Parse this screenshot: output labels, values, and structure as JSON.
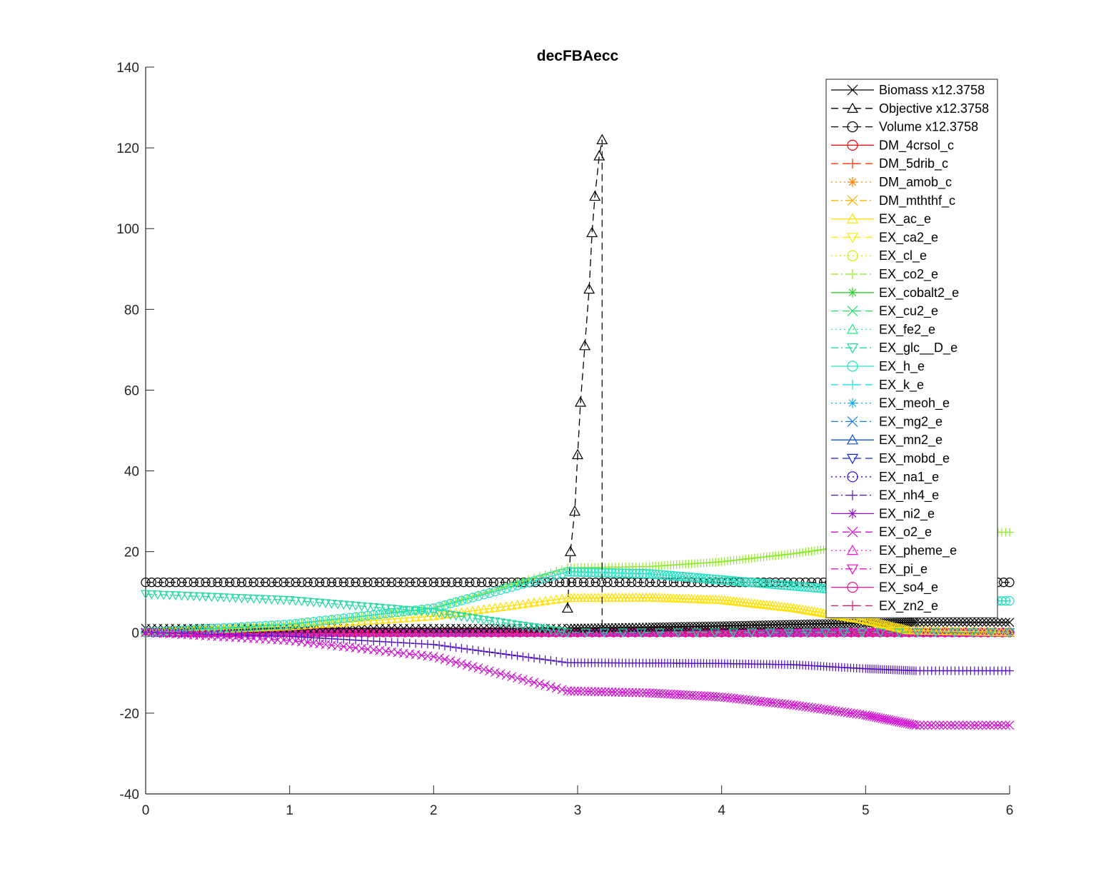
{
  "chart_data": {
    "type": "line",
    "title": "decFBAecc",
    "xlabel": "",
    "ylabel": "",
    "xlim": [
      0,
      6
    ],
    "ylim": [
      -40,
      140
    ],
    "xticks": [
      0,
      1,
      2,
      3,
      4,
      5,
      6
    ],
    "yticks": [
      -40,
      -20,
      0,
      20,
      40,
      60,
      80,
      100,
      120,
      140
    ],
    "grid": false,
    "legend_position": "top-right",
    "series": [
      {
        "name": "Biomass x12.3758",
        "color": "#000000",
        "dash": "solid",
        "marker": "x",
        "x": [
          0,
          1,
          2,
          2.93,
          3.5,
          4,
          4.5,
          5,
          5.35,
          6
        ],
        "y": [
          1,
          1,
          1,
          1,
          1.3,
          1.6,
          2.0,
          2.3,
          2.5,
          2.5
        ]
      },
      {
        "name": "Objective x12.3758",
        "color": "#000000",
        "dash": "dashed",
        "marker": "triangle-up",
        "x": [
          2.93,
          2.95,
          2.98,
          3.0,
          3.02,
          3.05,
          3.08,
          3.1,
          3.12,
          3.15,
          3.17
        ],
        "y": [
          6,
          20,
          30,
          44,
          57,
          71,
          85,
          99,
          108,
          118,
          122
        ]
      },
      {
        "name": "Volume x12.3758",
        "color": "#000000",
        "dash": "dashed",
        "marker": "circle",
        "x": [
          0,
          1,
          2,
          3,
          4,
          5,
          6
        ],
        "y": [
          12.4,
          12.4,
          12.4,
          12.4,
          12.4,
          12.4,
          12.4
        ]
      },
      {
        "name": "DM_4crsol_c",
        "color": "#ff0000",
        "dash": "solid",
        "marker": "circle",
        "x": [
          0,
          6
        ],
        "y": [
          0,
          0
        ]
      },
      {
        "name": "DM_5drib_c",
        "color": "#ff3300",
        "dash": "dashed",
        "marker": "plus",
        "x": [
          0,
          6
        ],
        "y": [
          0,
          0
        ]
      },
      {
        "name": "DM_amob_c",
        "color": "#ff7f00",
        "dash": "dotted",
        "marker": "asterisk",
        "x": [
          0,
          6
        ],
        "y": [
          0,
          0
        ]
      },
      {
        "name": "DM_mththf_c",
        "color": "#ffb000",
        "dash": "dashdot",
        "marker": "x",
        "x": [
          0,
          6
        ],
        "y": [
          0,
          0
        ]
      },
      {
        "name": "EX_ac_e",
        "color": "#ffe000",
        "dash": "solid",
        "marker": "triangle-up",
        "x": [
          0,
          1,
          2,
          2.93,
          3.5,
          4,
          4.5,
          5,
          5.3,
          6
        ],
        "y": [
          0,
          1.5,
          4,
          8.5,
          8.6,
          8,
          6,
          3,
          0.5,
          0
        ]
      },
      {
        "name": "EX_ca2_e",
        "color": "#f0f000",
        "dash": "dashed",
        "marker": "triangle-down",
        "x": [
          0,
          6
        ],
        "y": [
          0,
          0
        ]
      },
      {
        "name": "EX_cl_e",
        "color": "#c8f000",
        "dash": "dotted",
        "marker": "circle",
        "x": [
          0,
          6
        ],
        "y": [
          0,
          0
        ]
      },
      {
        "name": "EX_co2_e",
        "color": "#90e830",
        "dash": "dashdot",
        "marker": "plus",
        "x": [
          0,
          1,
          2,
          2.93,
          3.5,
          4,
          4.5,
          5,
          5.35,
          6
        ],
        "y": [
          0,
          2,
          6,
          16,
          16.3,
          17.5,
          19.5,
          22,
          24.8,
          24.8
        ]
      },
      {
        "name": "EX_cobalt2_e",
        "color": "#30d030",
        "dash": "solid",
        "marker": "asterisk",
        "x": [
          0,
          6
        ],
        "y": [
          0,
          0
        ]
      },
      {
        "name": "EX_cu2_e",
        "color": "#20e060",
        "dash": "dashed",
        "marker": "x",
        "x": [
          0,
          6
        ],
        "y": [
          0,
          0
        ]
      },
      {
        "name": "EX_fe2_e",
        "color": "#20e880",
        "dash": "dotted",
        "marker": "triangle-up",
        "x": [
          0,
          6
        ],
        "y": [
          0,
          0
        ]
      },
      {
        "name": "EX_glc__D_e",
        "color": "#20d8a0",
        "dash": "dashdot",
        "marker": "triangle-down",
        "x": [
          0,
          1,
          2,
          2.93,
          6
        ],
        "y": [
          9.5,
          8,
          5,
          0,
          0
        ]
      },
      {
        "name": "EX_h_e",
        "color": "#20e0c0",
        "dash": "solid",
        "marker": "circle",
        "x": [
          0,
          1,
          2,
          2.93,
          3.5,
          4,
          4.5,
          5,
          5.35,
          6
        ],
        "y": [
          0,
          2,
          6,
          15,
          14.5,
          13,
          11.5,
          10,
          7.8,
          7.8
        ]
      },
      {
        "name": "EX_k_e",
        "color": "#20e0e8",
        "dash": "dashed",
        "marker": "plus",
        "x": [
          0,
          6
        ],
        "y": [
          0,
          0
        ]
      },
      {
        "name": "EX_meoh_e",
        "color": "#10b0f0",
        "dash": "dotted",
        "marker": "asterisk",
        "x": [
          0,
          6
        ],
        "y": [
          0,
          0
        ]
      },
      {
        "name": "EX_mg2_e",
        "color": "#1080f0",
        "dash": "dashdot",
        "marker": "x",
        "x": [
          0,
          6
        ],
        "y": [
          0,
          0
        ]
      },
      {
        "name": "EX_mn2_e",
        "color": "#1050e0",
        "dash": "solid",
        "marker": "triangle-up",
        "x": [
          0,
          6
        ],
        "y": [
          0,
          0
        ]
      },
      {
        "name": "EX_mobd_e",
        "color": "#1020e0",
        "dash": "dashed",
        "marker": "triangle-down",
        "x": [
          0,
          6
        ],
        "y": [
          0,
          0
        ]
      },
      {
        "name": "EX_na1_e",
        "color": "#2010d0",
        "dash": "dotted",
        "marker": "circle",
        "x": [
          0,
          6
        ],
        "y": [
          0,
          0
        ]
      },
      {
        "name": "EX_nh4_e",
        "color": "#5010c0",
        "dash": "dashdot",
        "marker": "plus",
        "x": [
          0,
          1,
          2,
          2.93,
          3.5,
          4,
          4.5,
          5,
          5.35,
          6
        ],
        "y": [
          0,
          -1,
          -3,
          -7.5,
          -7.6,
          -7.7,
          -8,
          -9,
          -9.5,
          -9.5
        ]
      },
      {
        "name": "EX_ni2_e",
        "color": "#9010c0",
        "dash": "solid",
        "marker": "asterisk",
        "x": [
          0,
          6
        ],
        "y": [
          0,
          0
        ]
      },
      {
        "name": "EX_o2_e",
        "color": "#d010d0",
        "dash": "dashed",
        "marker": "x",
        "x": [
          0,
          1,
          2,
          2.93,
          3.5,
          4,
          4.5,
          5,
          5.35,
          6
        ],
        "y": [
          0,
          -2,
          -6,
          -14.5,
          -15,
          -16,
          -18,
          -20.5,
          -23,
          -23
        ]
      },
      {
        "name": "EX_pheme_e",
        "color": "#f010e0",
        "dash": "dotted",
        "marker": "triangle-up",
        "x": [
          0,
          6
        ],
        "y": [
          0,
          0
        ]
      },
      {
        "name": "EX_pi_e",
        "color": "#e010c0",
        "dash": "dashdot",
        "marker": "triangle-down",
        "x": [
          0,
          6
        ],
        "y": [
          0,
          0
        ]
      },
      {
        "name": "EX_so4_e",
        "color": "#f01090",
        "dash": "solid",
        "marker": "circle",
        "x": [
          0,
          6
        ],
        "y": [
          0,
          0
        ]
      },
      {
        "name": "EX_zn2_e",
        "color": "#e01060",
        "dash": "dashed",
        "marker": "plus",
        "x": [
          0,
          6
        ],
        "y": [
          0,
          0
        ]
      }
    ]
  }
}
